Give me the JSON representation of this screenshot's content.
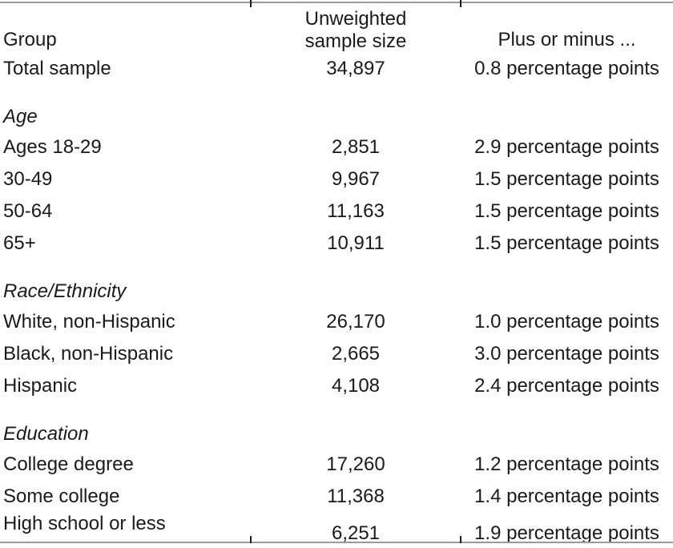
{
  "colors": {
    "background": "#ffffff",
    "rule_gray": "#9a9a9a",
    "tick_black": "#1a1a1a",
    "text": "#1a1a1a"
  },
  "table": {
    "header": {
      "group": "Group",
      "sample_size": "Unweighted sample size",
      "moe": "Plus or minus ..."
    },
    "total": {
      "group": "Total sample",
      "sample_size": "34,897",
      "moe": "0.8 percentage points"
    },
    "sections": [
      {
        "label": "Age",
        "rows": [
          {
            "group": "Ages 18-29",
            "sample_size": "2,851",
            "moe": "2.9 percentage points"
          },
          {
            "group": "30-49",
            "sample_size": "9,967",
            "moe": "1.5 percentage points"
          },
          {
            "group": "50-64",
            "sample_size": "11,163",
            "moe": "1.5 percentage points"
          },
          {
            "group": "65+",
            "sample_size": "10,911",
            "moe": "1.5 percentage points"
          }
        ]
      },
      {
        "label": "Race/Ethnicity",
        "rows": [
          {
            "group": "White, non-Hispanic",
            "sample_size": "26,170",
            "moe": "1.0 percentage points"
          },
          {
            "group": "Black, non-Hispanic",
            "sample_size": "2,665",
            "moe": "3.0 percentage points"
          },
          {
            "group": "Hispanic",
            "sample_size": "4,108",
            "moe": "2.4 percentage points"
          }
        ]
      },
      {
        "label": "Education",
        "rows": [
          {
            "group": "College degree",
            "sample_size": "17,260",
            "moe": "1.2 percentage points"
          },
          {
            "group": "Some college",
            "sample_size": "11,368",
            "moe": "1.4 percentage points"
          },
          {
            "group": "High school or less",
            "sample_size": "6,251",
            "moe": "1.9 percentage points"
          }
        ]
      }
    ]
  }
}
